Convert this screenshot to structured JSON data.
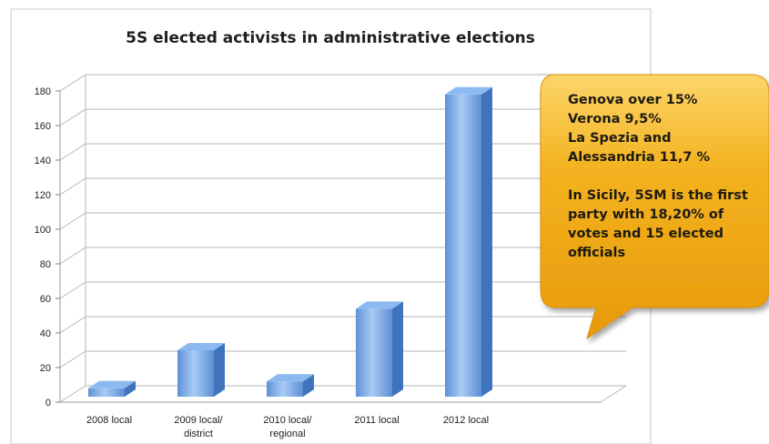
{
  "chart_data": {
    "type": "bar",
    "title": "5S elected activists in administrative elections",
    "categories": [
      "2008 local",
      "2009 local/ district",
      "2010 local/ regional",
      "2011 local",
      "2012 local"
    ],
    "category_lines": [
      [
        "2008 local"
      ],
      [
        "2009 local/",
        "district"
      ],
      [
        "2010 local/",
        "regional"
      ],
      [
        "2011 local"
      ],
      [
        "2012 local"
      ]
    ],
    "values": [
      8,
      30,
      12,
      54,
      178
    ],
    "ylim": [
      0,
      180
    ],
    "yticks": [
      0,
      20,
      40,
      60,
      80,
      100,
      120,
      140,
      160,
      180
    ],
    "grid": true,
    "style": "3d-column",
    "bar_color": "#6fa6e6"
  },
  "callout": {
    "lines_group1": [
      "Genova over 15%",
      "Verona 9,5%",
      "La Spezia and",
      "Alessandria 11,7 %"
    ],
    "lines_group2": [
      "In Sicily, 5SM is the first",
      "party with 18,20% of",
      "votes and 15 elected",
      "officials"
    ],
    "color": "#f1ac14"
  }
}
